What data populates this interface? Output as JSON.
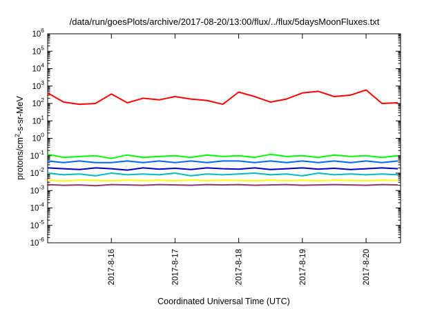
{
  "chart_data": {
    "type": "line",
    "title": "/data/run/goesPlots/archive/2017-08-20/13:00/flux/../flux/5daysMoonFluxes.txt",
    "xlabel": "Coordinated Universal Time (UTC)",
    "ylabel": "protons/cm2-s-sr-MeV",
    "ylabel_parts": {
      "pre": "protons/cm",
      "sup": "2",
      "post": "-s-sr-MeV"
    },
    "yscale": "log",
    "ylim": [
      1e-06,
      1000000.0
    ],
    "ytick_labels": [
      {
        "base": "10",
        "exp": "-6"
      },
      {
        "base": "10",
        "exp": "-5"
      },
      {
        "base": "10",
        "exp": "-4"
      },
      {
        "base": "10",
        "exp": "-3"
      },
      {
        "base": "10",
        "exp": "-2"
      },
      {
        "base": "10",
        "exp": "-1"
      },
      {
        "base": "10",
        "exp": "0"
      },
      {
        "base": "10",
        "exp": "1"
      },
      {
        "base": "10",
        "exp": "2"
      },
      {
        "base": "10",
        "exp": "3"
      },
      {
        "base": "10",
        "exp": "4"
      },
      {
        "base": "10",
        "exp": "5"
      },
      {
        "base": "10",
        "exp": "6"
      }
    ],
    "xlim": [
      "2017-08-15 00:00",
      "2017-08-20 13:00"
    ],
    "xtick_labels": [
      "2017-8-16",
      "2017-8-17",
      "2017-8-18",
      "2017-8-19",
      "2017-8-20"
    ],
    "grid": false,
    "legend": "none",
    "series": [
      {
        "color": "#ff0000",
        "x": [
          "2017-08-15 00:00",
          "2017-08-15 06:00",
          "2017-08-15 12:00",
          "2017-08-15 18:00",
          "2017-08-16 00:00",
          "2017-08-16 06:00",
          "2017-08-16 12:00",
          "2017-08-16 18:00",
          "2017-08-17 00:00",
          "2017-08-17 06:00",
          "2017-08-17 12:00",
          "2017-08-17 18:00",
          "2017-08-18 00:00",
          "2017-08-18 06:00",
          "2017-08-18 12:00",
          "2017-08-18 18:00",
          "2017-08-19 00:00",
          "2017-08-19 06:00",
          "2017-08-19 12:00",
          "2017-08-19 18:00",
          "2017-08-20 00:00",
          "2017-08-20 06:00",
          "2017-08-20 12:00"
        ],
        "values": [
          400,
          120,
          90,
          100,
          350,
          110,
          200,
          160,
          250,
          180,
          150,
          90,
          450,
          250,
          120,
          180,
          400,
          500,
          250,
          300,
          600,
          100,
          110
        ]
      },
      {
        "color": "#00ff00",
        "x": [
          "2017-08-15 00:00",
          "2017-08-15 06:00",
          "2017-08-15 12:00",
          "2017-08-15 18:00",
          "2017-08-16 00:00",
          "2017-08-16 06:00",
          "2017-08-16 12:00",
          "2017-08-16 18:00",
          "2017-08-17 00:00",
          "2017-08-17 06:00",
          "2017-08-17 12:00",
          "2017-08-17 18:00",
          "2017-08-18 00:00",
          "2017-08-18 06:00",
          "2017-08-18 12:00",
          "2017-08-18 18:00",
          "2017-08-19 00:00",
          "2017-08-19 06:00",
          "2017-08-19 12:00",
          "2017-08-19 18:00",
          "2017-08-20 00:00",
          "2017-08-20 06:00",
          "2017-08-20 12:00"
        ],
        "values": [
          0.12,
          0.08,
          0.09,
          0.1,
          0.07,
          0.11,
          0.08,
          0.09,
          0.1,
          0.08,
          0.11,
          0.09,
          0.1,
          0.08,
          0.12,
          0.09,
          0.1,
          0.08,
          0.11,
          0.09,
          0.1,
          0.08,
          0.1
        ]
      },
      {
        "color": "#0066ff",
        "x": [
          "2017-08-15 00:00",
          "2017-08-15 06:00",
          "2017-08-15 12:00",
          "2017-08-15 18:00",
          "2017-08-16 00:00",
          "2017-08-16 06:00",
          "2017-08-16 12:00",
          "2017-08-16 18:00",
          "2017-08-17 00:00",
          "2017-08-17 06:00",
          "2017-08-17 12:00",
          "2017-08-17 18:00",
          "2017-08-18 00:00",
          "2017-08-18 06:00",
          "2017-08-18 12:00",
          "2017-08-18 18:00",
          "2017-08-19 00:00",
          "2017-08-19 06:00",
          "2017-08-19 12:00",
          "2017-08-19 18:00",
          "2017-08-20 00:00",
          "2017-08-20 06:00",
          "2017-08-20 12:00"
        ],
        "values": [
          0.05,
          0.04,
          0.05,
          0.04,
          0.04,
          0.05,
          0.04,
          0.05,
          0.04,
          0.05,
          0.04,
          0.05,
          0.05,
          0.04,
          0.05,
          0.04,
          0.05,
          0.04,
          0.05,
          0.04,
          0.05,
          0.04,
          0.05
        ]
      },
      {
        "color": "#0000cc",
        "x": [
          "2017-08-15 00:00",
          "2017-08-15 06:00",
          "2017-08-15 12:00",
          "2017-08-15 18:00",
          "2017-08-16 00:00",
          "2017-08-16 06:00",
          "2017-08-16 12:00",
          "2017-08-16 18:00",
          "2017-08-17 00:00",
          "2017-08-17 06:00",
          "2017-08-17 12:00",
          "2017-08-17 18:00",
          "2017-08-18 00:00",
          "2017-08-18 06:00",
          "2017-08-18 12:00",
          "2017-08-18 18:00",
          "2017-08-19 00:00",
          "2017-08-19 06:00",
          "2017-08-19 12:00",
          "2017-08-19 18:00",
          "2017-08-20 00:00",
          "2017-08-20 06:00",
          "2017-08-20 12:00"
        ],
        "values": [
          0.02,
          0.018,
          0.016,
          0.02,
          0.018,
          0.015,
          0.02,
          0.017,
          0.019,
          0.016,
          0.02,
          0.018,
          0.017,
          0.02,
          0.016,
          0.018,
          0.02,
          0.017,
          0.019,
          0.016,
          0.018,
          0.02,
          0.018
        ]
      },
      {
        "color": "#00bbbb",
        "x": [
          "2017-08-15 00:00",
          "2017-08-15 06:00",
          "2017-08-15 12:00",
          "2017-08-15 18:00",
          "2017-08-16 00:00",
          "2017-08-16 06:00",
          "2017-08-16 12:00",
          "2017-08-16 18:00",
          "2017-08-17 00:00",
          "2017-08-17 06:00",
          "2017-08-17 12:00",
          "2017-08-17 18:00",
          "2017-08-18 00:00",
          "2017-08-18 06:00",
          "2017-08-18 12:00",
          "2017-08-18 18:00",
          "2017-08-19 00:00",
          "2017-08-19 06:00",
          "2017-08-19 12:00",
          "2017-08-19 18:00",
          "2017-08-20 00:00",
          "2017-08-20 06:00",
          "2017-08-20 12:00"
        ],
        "values": [
          0.01,
          0.008,
          0.009,
          0.007,
          0.01,
          0.008,
          0.009,
          0.008,
          0.01,
          0.007,
          0.009,
          0.008,
          0.009,
          0.01,
          0.008,
          0.009,
          0.007,
          0.01,
          0.008,
          0.009,
          0.008,
          0.009,
          0.008
        ]
      },
      {
        "color": "#ffff00",
        "x": [
          "2017-08-15 00:00",
          "2017-08-15 06:00",
          "2017-08-15 12:00",
          "2017-08-15 18:00",
          "2017-08-16 00:00",
          "2017-08-16 06:00",
          "2017-08-16 12:00",
          "2017-08-16 18:00",
          "2017-08-17 00:00",
          "2017-08-17 06:00",
          "2017-08-17 12:00",
          "2017-08-17 18:00",
          "2017-08-18 00:00",
          "2017-08-18 06:00",
          "2017-08-18 12:00",
          "2017-08-18 18:00",
          "2017-08-19 00:00",
          "2017-08-19 06:00",
          "2017-08-19 12:00",
          "2017-08-19 18:00",
          "2017-08-20 00:00",
          "2017-08-20 06:00",
          "2017-08-20 12:00"
        ],
        "values": [
          0.004,
          0.0035,
          0.004,
          0.0038,
          0.0036,
          0.004,
          0.0037,
          0.0039,
          0.0036,
          0.004,
          0.0037,
          0.0039,
          0.0038,
          0.0036,
          0.004,
          0.0037,
          0.0039,
          0.0036,
          0.004,
          0.0038,
          0.0037,
          0.0039,
          0.0038
        ]
      },
      {
        "color": "#8b3a62",
        "x": [
          "2017-08-15 00:00",
          "2017-08-15 06:00",
          "2017-08-15 12:00",
          "2017-08-15 18:00",
          "2017-08-16 00:00",
          "2017-08-16 06:00",
          "2017-08-16 12:00",
          "2017-08-16 18:00",
          "2017-08-17 00:00",
          "2017-08-17 06:00",
          "2017-08-17 12:00",
          "2017-08-17 18:00",
          "2017-08-18 00:00",
          "2017-08-18 06:00",
          "2017-08-18 12:00",
          "2017-08-18 18:00",
          "2017-08-19 00:00",
          "2017-08-19 06:00",
          "2017-08-19 12:00",
          "2017-08-19 18:00",
          "2017-08-20 00:00",
          "2017-08-20 06:00",
          "2017-08-20 12:00"
        ],
        "values": [
          0.0022,
          0.002,
          0.0021,
          0.0019,
          0.0022,
          0.0021,
          0.002,
          0.0022,
          0.0021,
          0.002,
          0.0022,
          0.0021,
          0.0022,
          0.002,
          0.0021,
          0.0022,
          0.002,
          0.0021,
          0.0022,
          0.0021,
          0.002,
          0.0022,
          0.0021
        ]
      }
    ]
  }
}
